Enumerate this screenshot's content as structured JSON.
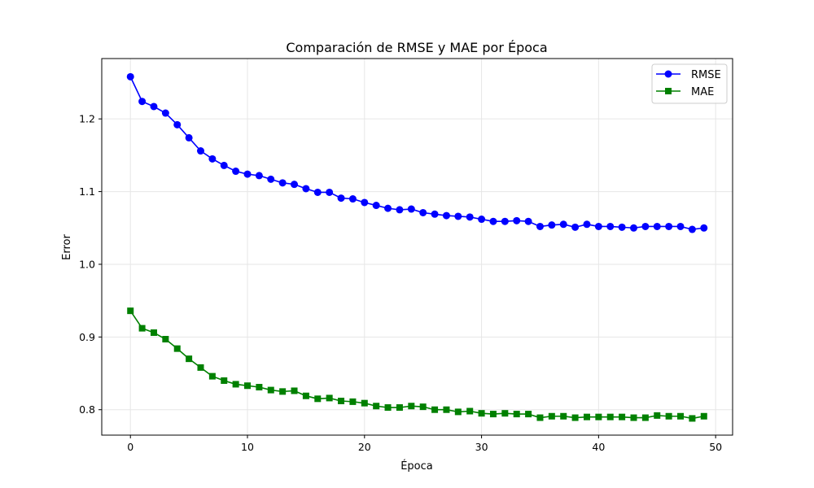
{
  "chart_data": {
    "type": "line",
    "title": "Comparación de RMSE y MAE por Época",
    "xlabel": "Época",
    "ylabel": "Error",
    "xlim": [
      -2.45,
      51.45
    ],
    "ylim": [
      0.765,
      1.283
    ],
    "xticks": [
      0,
      10,
      20,
      30,
      40,
      50
    ],
    "xtick_labels": [
      "0",
      "10",
      "20",
      "30",
      "40",
      "50"
    ],
    "yticks": [
      0.8,
      0.9,
      1.0,
      1.1,
      1.2
    ],
    "ytick_labels": [
      "0.8",
      "0.9",
      "1.0",
      "1.1",
      "1.2"
    ],
    "grid": true,
    "legend_position": "top-right",
    "x": [
      0,
      1,
      2,
      3,
      4,
      5,
      6,
      7,
      8,
      9,
      10,
      11,
      12,
      13,
      14,
      15,
      16,
      17,
      18,
      19,
      20,
      21,
      22,
      23,
      24,
      25,
      26,
      27,
      28,
      29,
      30,
      31,
      32,
      33,
      34,
      35,
      36,
      37,
      38,
      39,
      40,
      41,
      42,
      43,
      44,
      45,
      46,
      47,
      48,
      49
    ],
    "series": [
      {
        "name": "RMSE",
        "color": "#0000ff",
        "marker": "circle",
        "values": [
          1.258,
          1.224,
          1.217,
          1.208,
          1.192,
          1.174,
          1.156,
          1.145,
          1.136,
          1.128,
          1.124,
          1.122,
          1.117,
          1.112,
          1.11,
          1.104,
          1.099,
          1.099,
          1.091,
          1.09,
          1.085,
          1.081,
          1.077,
          1.075,
          1.076,
          1.071,
          1.069,
          1.067,
          1.066,
          1.065,
          1.062,
          1.059,
          1.059,
          1.06,
          1.059,
          1.052,
          1.054,
          1.055,
          1.051,
          1.055,
          1.052,
          1.052,
          1.051,
          1.05,
          1.052,
          1.052,
          1.052,
          1.052,
          1.048,
          1.05
        ]
      },
      {
        "name": "MAE",
        "color": "#008000",
        "marker": "square",
        "values": [
          0.936,
          0.912,
          0.906,
          0.897,
          0.884,
          0.87,
          0.858,
          0.846,
          0.84,
          0.835,
          0.833,
          0.831,
          0.827,
          0.825,
          0.826,
          0.819,
          0.815,
          0.816,
          0.812,
          0.811,
          0.809,
          0.805,
          0.803,
          0.803,
          0.805,
          0.804,
          0.8,
          0.8,
          0.797,
          0.798,
          0.795,
          0.794,
          0.795,
          0.794,
          0.794,
          0.789,
          0.791,
          0.791,
          0.789,
          0.79,
          0.79,
          0.79,
          0.79,
          0.789,
          0.789,
          0.792,
          0.791,
          0.791,
          0.788,
          0.791
        ]
      }
    ]
  }
}
